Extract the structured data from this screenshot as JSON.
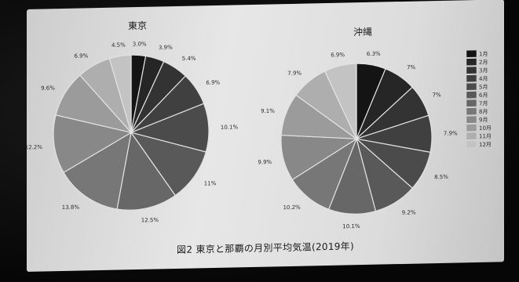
{
  "caption": "図2 東京と那覇の月別平均気温(2019年)",
  "legend_title": "",
  "chart_data": [
    {
      "type": "pie",
      "title": "東京",
      "categories": [
        "1月",
        "2月",
        "3月",
        "4月",
        "5月",
        "6月",
        "7月",
        "8月",
        "9月",
        "10月",
        "11月",
        "12月"
      ],
      "values": [
        3.0,
        3.9,
        5.4,
        6.9,
        10.1,
        11.0,
        12.5,
        13.8,
        12.2,
        9.6,
        6.9,
        4.5
      ],
      "labels": [
        "3.0%",
        "3.9%",
        "5.4%",
        "6.9%",
        "10.1%",
        "11%",
        "12.5%",
        "13.8%",
        "12.2%",
        "9.6%",
        "6.9%",
        "4.5%"
      ]
    },
    {
      "type": "pie",
      "title": "沖縄",
      "categories": [
        "1月",
        "2月",
        "3月",
        "4月",
        "5月",
        "6月",
        "7月",
        "8月",
        "9月",
        "10月",
        "11月",
        "12月"
      ],
      "values": [
        6.3,
        7.0,
        7.0,
        7.9,
        8.5,
        9.2,
        10.1,
        10.2,
        9.9,
        9.1,
        7.9,
        6.9
      ],
      "labels": [
        "6.3%",
        "7%",
        "7%",
        "7.9%",
        "8.5%",
        "9.2%",
        "10.1%",
        "10.2%",
        "9.9%",
        "9.1%",
        "7.9%",
        "6.9%"
      ]
    }
  ],
  "legend": [
    "1月",
    "2月",
    "3月",
    "4月",
    "5月",
    "6月",
    "7月",
    "8月",
    "9月",
    "10月",
    "11月",
    "12月"
  ],
  "colors": [
    "#141414",
    "#262626",
    "#333333",
    "#404040",
    "#4b4b4b",
    "#595959",
    "#676767",
    "#777777",
    "#888888",
    "#9b9b9b",
    "#aeaeae",
    "#c3c3c3"
  ]
}
